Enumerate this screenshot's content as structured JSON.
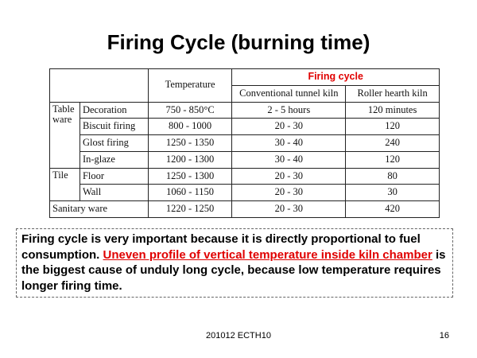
{
  "slide": {
    "title": "Firing Cycle (burning time)",
    "footer": "201012 ECTH10",
    "page_number": "16"
  },
  "table": {
    "headers": {
      "temperature": "Temperature",
      "firing_cycle": "Firing cycle",
      "conventional": "Conventional tunnel kiln",
      "roller": "Roller hearth kiln"
    },
    "categories": {
      "table_ware": "Table ware",
      "tile": "Tile",
      "sanitary_ware": "Sanitary ware"
    },
    "rows": [
      {
        "process": "Decoration",
        "temperature": "750 - 850°C",
        "conventional": "2 - 5 hours",
        "roller": "120 minutes"
      },
      {
        "process": "Biscuit firing",
        "temperature": "800 - 1000",
        "conventional": "20 - 30",
        "roller": "120"
      },
      {
        "process": "Glost firing",
        "temperature": "1250 - 1350",
        "conventional": "30 - 40",
        "roller": "240"
      },
      {
        "process": "In-glaze",
        "temperature": "1200 - 1300",
        "conventional": "30 - 40",
        "roller": "120"
      },
      {
        "process": "Floor",
        "temperature": "1250 - 1300",
        "conventional": "20 - 30",
        "roller": "80"
      },
      {
        "process": "Wall",
        "temperature": "1060 - 1150",
        "conventional": "20 - 30",
        "roller": "30"
      },
      {
        "process": "",
        "temperature": "1220 - 1250",
        "conventional": "20 - 30",
        "roller": "420"
      }
    ]
  },
  "note": {
    "part1": "Firing cycle is very important because it is directly proportional to fuel consumption. ",
    "highlight": "Uneven profile of vertical temperature inside kiln chamber",
    "part2": " is the biggest cause of unduly long cycle, because low temperature requires longer firing time.",
    "highlight_color": "#e00000"
  }
}
